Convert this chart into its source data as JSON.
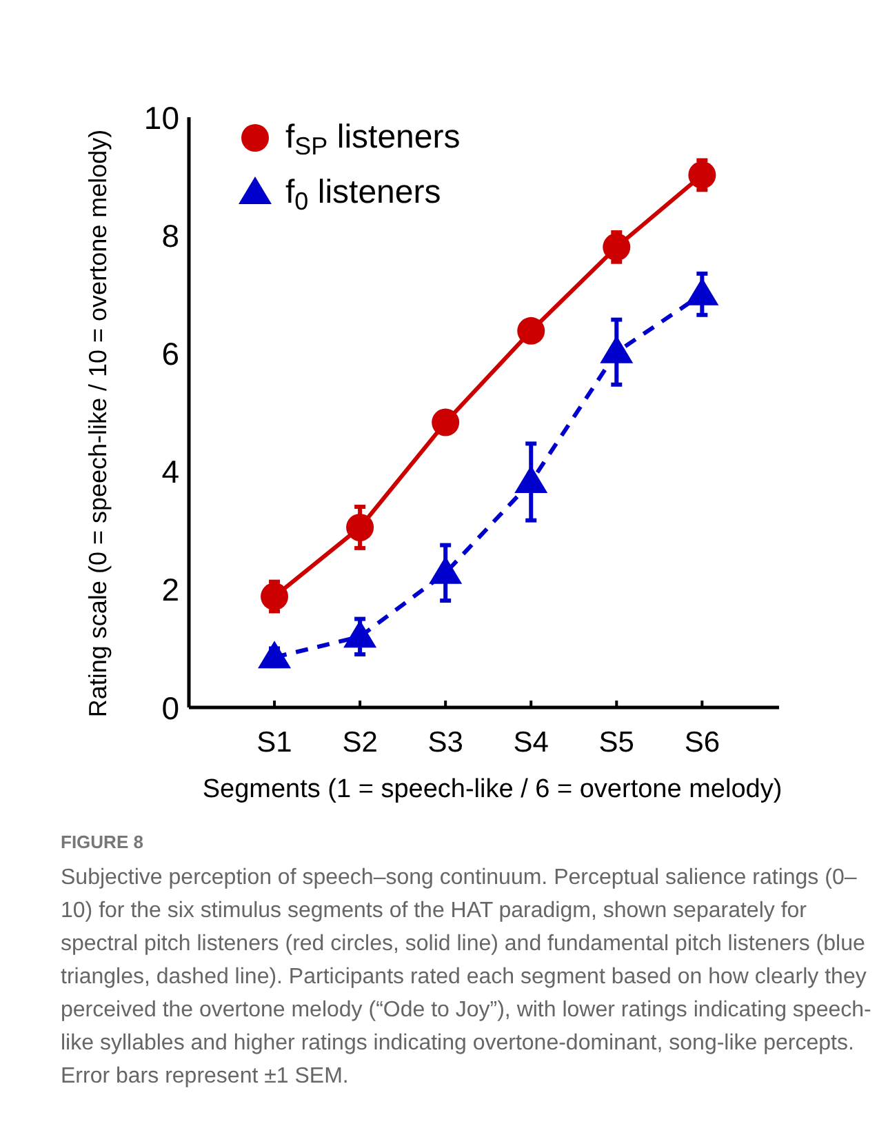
{
  "chart_data": {
    "type": "line",
    "ylabel": "Rating scale (0 = speech-like / 10 = overtone melody)",
    "xlabel": "Segments (1 = speech-like / 6 = overtone melody)",
    "categories": [
      "S1",
      "S2",
      "S3",
      "S4",
      "S5",
      "S6"
    ],
    "series": [
      {
        "name": "f$_{SP}$ listeners",
        "color": "#cc0000",
        "marker": "circle",
        "line_style": "solid",
        "values": [
          1.88,
          3.05,
          4.83,
          6.38,
          7.8,
          9.02
        ],
        "errors": [
          0.25,
          0.35,
          0.1,
          0.08,
          0.25,
          0.25
        ]
      },
      {
        "name": "f$_{0}$ listeners",
        "color": "#0000cc",
        "marker": "triangle",
        "line_style": "dashed",
        "values": [
          0.85,
          1.2,
          2.28,
          3.82,
          6.02,
          7.0
        ],
        "errors": [
          0.15,
          0.3,
          0.47,
          0.65,
          0.55,
          0.35
        ]
      }
    ],
    "ylim": [
      0,
      10
    ],
    "yticks": [
      0,
      2,
      4,
      6,
      8,
      10
    ],
    "grid": false,
    "legend": "top left",
    "annotations": [
      "FIGURE 8",
      "Subjective perception of speech–song continuum. Perceptual salience ratings (0–10) for the six stimulus segments of the HAT paradigm, shown separately for spectral pitch listeners (red circles, solid line) and fundamental pitch listeners (blue triangles, dashed line). Participants rated each segment based on how clearly they perceived the overtone melody (“Ode to Joy”), with lower ratings indicating speech-like syllables and higher ratings indicating overtone-dominant, song-like percepts. Error bars represent ±1 SEM."
    ]
  }
}
